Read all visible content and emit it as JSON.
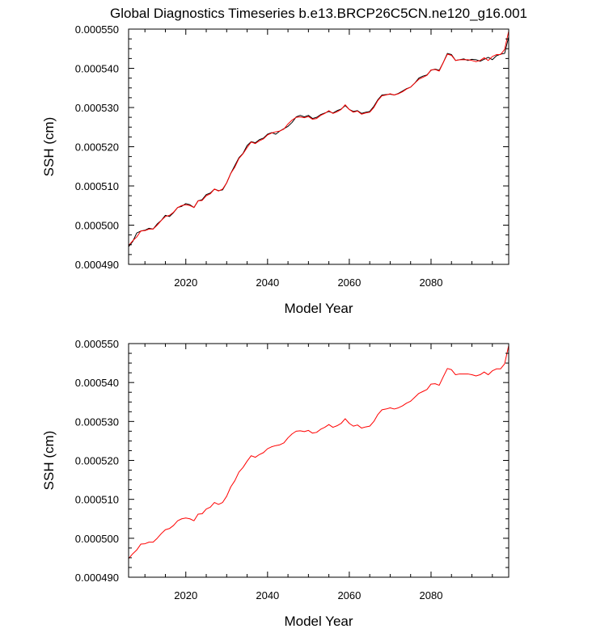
{
  "chart_data": [
    {
      "type": "line",
      "title": "Global Diagnostics Timeseries b.e13.BRCP26C5CN.ne120_g16.001",
      "xlabel": "Model Year",
      "ylabel": "SSH (cm)",
      "xlim": [
        2006,
        2099
      ],
      "ylim": [
        0.00049,
        0.00055
      ],
      "xticks": [
        2020,
        2040,
        2060,
        2080
      ],
      "xtick_labels": [
        "2020",
        "2040",
        "2060",
        "2080"
      ],
      "yticks": [
        0.00049,
        0.0005,
        0.00051,
        0.00052,
        0.00053,
        0.00054,
        0.00055
      ],
      "ytick_labels": [
        "0.000490",
        "0.000500",
        "0.000510",
        "0.000520",
        "0.000530",
        "0.000540",
        "0.000550"
      ],
      "series": [
        {
          "name": "monthly",
          "color": "#000000",
          "x": [
            2006,
            2007,
            2008,
            2009,
            2010,
            2011,
            2012,
            2013,
            2014,
            2015,
            2016,
            2017,
            2018,
            2019,
            2020,
            2021,
            2022,
            2023,
            2024,
            2025,
            2026,
            2027,
            2028,
            2029,
            2030,
            2031,
            2032,
            2033,
            2034,
            2035,
            2036,
            2037,
            2038,
            2039,
            2040,
            2041,
            2042,
            2043,
            2044,
            2045,
            2046,
            2047,
            2048,
            2049,
            2050,
            2051,
            2052,
            2053,
            2054,
            2055,
            2056,
            2057,
            2058,
            2059,
            2060,
            2061,
            2062,
            2063,
            2064,
            2065,
            2066,
            2067,
            2068,
            2069,
            2070,
            2071,
            2072,
            2073,
            2074,
            2075,
            2076,
            2077,
            2078,
            2079,
            2080,
            2081,
            2082,
            2083,
            2084,
            2085,
            2086,
            2087,
            2088,
            2089,
            2090,
            2091,
            2092,
            2093,
            2094,
            2095,
            2096,
            2097,
            2098,
            2099
          ],
          "values": [
            0.0004945,
            0.0004958,
            0.000498,
            0.0004985,
            0.0004987,
            0.0004992,
            0.000499,
            0.0005003,
            0.0005012,
            0.0005025,
            0.0005022,
            0.0005032,
            0.0005045,
            0.0005048,
            0.0005055,
            0.0005052,
            0.0005045,
            0.0005062,
            0.0005065,
            0.0005078,
            0.0005082,
            0.0005092,
            0.0005088,
            0.000509,
            0.0005108,
            0.0005132,
            0.0005152,
            0.0005172,
            0.0005183,
            0.0005203,
            0.0005213,
            0.000521,
            0.0005218,
            0.0005222,
            0.0005232,
            0.0005236,
            0.0005232,
            0.000524,
            0.0005246,
            0.0005252,
            0.0005262,
            0.0005276,
            0.000528,
            0.0005276,
            0.000528,
            0.0005272,
            0.0005275,
            0.0005282,
            0.0005286,
            0.000529,
            0.0005286,
            0.0005292,
            0.0005296,
            0.0005305,
            0.0005295,
            0.000529,
            0.0005292,
            0.0005285,
            0.0005288,
            0.000529,
            0.0005303,
            0.000532,
            0.0005332,
            0.0005333,
            0.0005334,
            0.0005332,
            0.0005336,
            0.0005342,
            0.0005348,
            0.0005352,
            0.0005362,
            0.0005375,
            0.000538,
            0.0005383,
            0.0005395,
            0.0005398,
            0.0005395,
            0.0005415,
            0.0005438,
            0.0005435,
            0.000542,
            0.0005422,
            0.0005424,
            0.000542,
            0.0005423,
            0.0005422,
            0.0005418,
            0.0005423,
            0.0005428,
            0.0005422,
            0.0005432,
            0.0005436,
            0.0005438,
            0.000548
          ]
        },
        {
          "name": "annual mean",
          "color": "#ff0000",
          "x": [
            2006,
            2007,
            2008,
            2009,
            2010,
            2011,
            2012,
            2013,
            2014,
            2015,
            2016,
            2017,
            2018,
            2019,
            2020,
            2021,
            2022,
            2023,
            2024,
            2025,
            2026,
            2027,
            2028,
            2029,
            2030,
            2031,
            2032,
            2033,
            2034,
            2035,
            2036,
            2037,
            2038,
            2039,
            2040,
            2041,
            2042,
            2043,
            2044,
            2045,
            2046,
            2047,
            2048,
            2049,
            2050,
            2051,
            2052,
            2053,
            2054,
            2055,
            2056,
            2057,
            2058,
            2059,
            2060,
            2061,
            2062,
            2063,
            2064,
            2065,
            2066,
            2067,
            2068,
            2069,
            2070,
            2071,
            2072,
            2073,
            2074,
            2075,
            2076,
            2077,
            2078,
            2079,
            2080,
            2081,
            2082,
            2083,
            2084,
            2085,
            2086,
            2087,
            2088,
            2089,
            2090,
            2091,
            2092,
            2093,
            2094,
            2095,
            2096,
            2097,
            2098,
            2099
          ],
          "values": [
            0.0004948,
            0.000496,
            0.000497,
            0.0004985,
            0.0004986,
            0.000499,
            0.000499,
            0.0005,
            0.0005012,
            0.0005022,
            0.0005025,
            0.0005033,
            0.0005045,
            0.000505,
            0.0005052,
            0.000505,
            0.0005045,
            0.0005062,
            0.0005063,
            0.0005075,
            0.000508,
            0.0005092,
            0.0005087,
            0.0005092,
            0.0005108,
            0.0005132,
            0.0005148,
            0.000517,
            0.0005182,
            0.0005198,
            0.0005212,
            0.0005208,
            0.0005215,
            0.000522,
            0.000523,
            0.0005235,
            0.0005238,
            0.000524,
            0.0005245,
            0.0005258,
            0.0005268,
            0.0005275,
            0.0005276,
            0.0005274,
            0.0005277,
            0.000527,
            0.0005272,
            0.000528,
            0.0005285,
            0.0005292,
            0.0005285,
            0.0005289,
            0.0005295,
            0.0005307,
            0.0005295,
            0.0005288,
            0.0005291,
            0.0005283,
            0.0005286,
            0.0005288,
            0.00053,
            0.0005318,
            0.000533,
            0.0005332,
            0.0005335,
            0.0005332,
            0.0005335,
            0.000534,
            0.0005347,
            0.0005352,
            0.0005362,
            0.0005372,
            0.0005377,
            0.0005382,
            0.0005396,
            0.0005397,
            0.0005393,
            0.0005415,
            0.0005436,
            0.0005433,
            0.000542,
            0.0005422,
            0.0005422,
            0.0005422,
            0.000542,
            0.0005417,
            0.000542,
            0.0005427,
            0.000542,
            0.000543,
            0.0005435,
            0.0005435,
            0.0005448,
            0.0005495
          ]
        }
      ]
    },
    {
      "type": "line",
      "title": "",
      "xlabel": "Model Year",
      "ylabel": "SSH (cm)",
      "xlim": [
        2006,
        2099
      ],
      "ylim": [
        0.00049,
        0.00055
      ],
      "xticks": [
        2020,
        2040,
        2060,
        2080
      ],
      "xtick_labels": [
        "2020",
        "2040",
        "2060",
        "2080"
      ],
      "yticks": [
        0.00049,
        0.0005,
        0.00051,
        0.00052,
        0.00053,
        0.00054,
        0.00055
      ],
      "ytick_labels": [
        "0.000490",
        "0.000500",
        "0.000510",
        "0.000520",
        "0.000530",
        "0.000540",
        "0.000550"
      ],
      "series": [
        {
          "name": "annual mean",
          "color": "#ff0000",
          "x": [
            2006,
            2007,
            2008,
            2009,
            2010,
            2011,
            2012,
            2013,
            2014,
            2015,
            2016,
            2017,
            2018,
            2019,
            2020,
            2021,
            2022,
            2023,
            2024,
            2025,
            2026,
            2027,
            2028,
            2029,
            2030,
            2031,
            2032,
            2033,
            2034,
            2035,
            2036,
            2037,
            2038,
            2039,
            2040,
            2041,
            2042,
            2043,
            2044,
            2045,
            2046,
            2047,
            2048,
            2049,
            2050,
            2051,
            2052,
            2053,
            2054,
            2055,
            2056,
            2057,
            2058,
            2059,
            2060,
            2061,
            2062,
            2063,
            2064,
            2065,
            2066,
            2067,
            2068,
            2069,
            2070,
            2071,
            2072,
            2073,
            2074,
            2075,
            2076,
            2077,
            2078,
            2079,
            2080,
            2081,
            2082,
            2083,
            2084,
            2085,
            2086,
            2087,
            2088,
            2089,
            2090,
            2091,
            2092,
            2093,
            2094,
            2095,
            2096,
            2097,
            2098,
            2099
          ],
          "values": [
            0.0004948,
            0.000496,
            0.000497,
            0.0004985,
            0.0004986,
            0.000499,
            0.000499,
            0.0005,
            0.0005012,
            0.0005022,
            0.0005025,
            0.0005033,
            0.0005045,
            0.000505,
            0.0005052,
            0.000505,
            0.0005045,
            0.0005062,
            0.0005063,
            0.0005075,
            0.000508,
            0.0005092,
            0.0005087,
            0.0005092,
            0.0005108,
            0.0005132,
            0.0005148,
            0.000517,
            0.0005182,
            0.0005198,
            0.0005212,
            0.0005208,
            0.0005215,
            0.000522,
            0.000523,
            0.0005235,
            0.0005238,
            0.000524,
            0.0005245,
            0.0005258,
            0.0005268,
            0.0005275,
            0.0005276,
            0.0005274,
            0.0005277,
            0.000527,
            0.0005272,
            0.000528,
            0.0005285,
            0.0005292,
            0.0005285,
            0.0005289,
            0.0005295,
            0.0005307,
            0.0005295,
            0.0005288,
            0.0005291,
            0.0005283,
            0.0005286,
            0.0005288,
            0.00053,
            0.0005318,
            0.000533,
            0.0005332,
            0.0005335,
            0.0005332,
            0.0005335,
            0.000534,
            0.0005347,
            0.0005352,
            0.0005362,
            0.0005372,
            0.0005377,
            0.0005382,
            0.0005396,
            0.0005397,
            0.0005393,
            0.0005415,
            0.0005436,
            0.0005433,
            0.000542,
            0.0005422,
            0.0005422,
            0.0005422,
            0.000542,
            0.0005417,
            0.000542,
            0.0005427,
            0.000542,
            0.000543,
            0.0005435,
            0.0005435,
            0.0005448,
            0.0005495
          ]
        }
      ]
    }
  ]
}
